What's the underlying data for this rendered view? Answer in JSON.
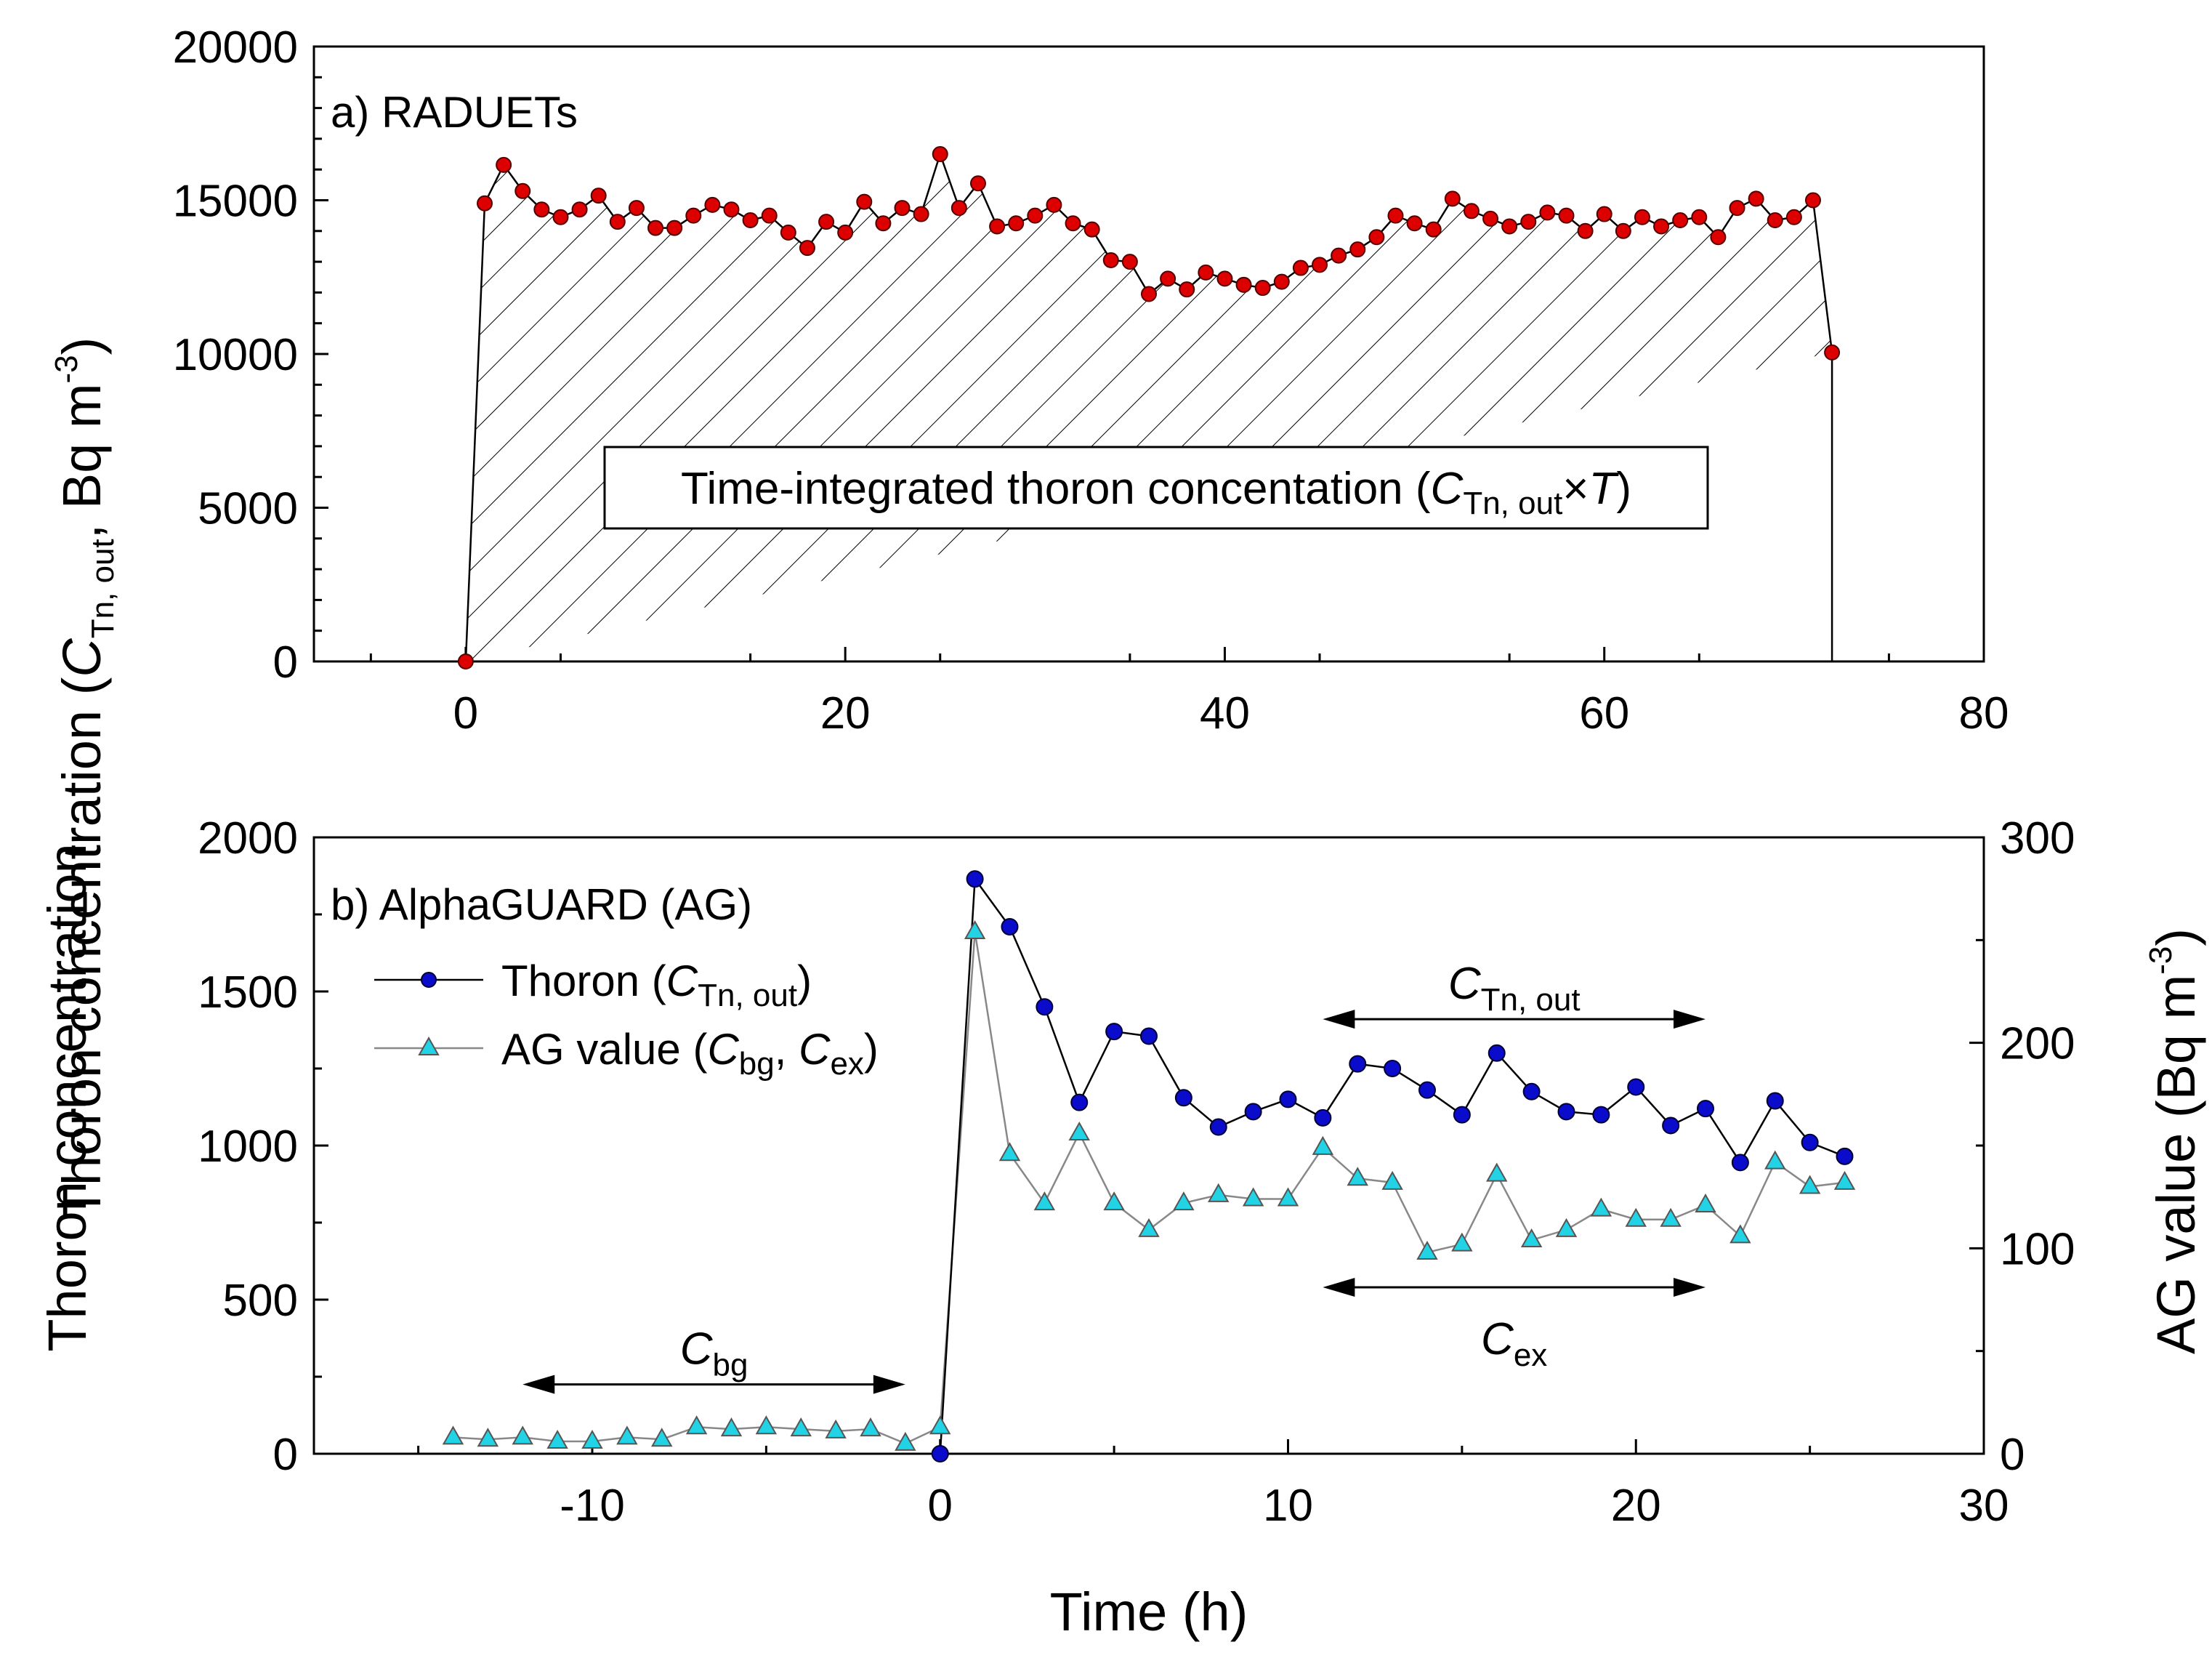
{
  "chart_data": [
    {
      "type": "line",
      "panel_label": "a) RADUETs",
      "xlim": [
        -8,
        80
      ],
      "xticks": [
        0,
        20,
        40,
        60,
        80
      ],
      "ylim": [
        0,
        20000
      ],
      "yticks": [
        0,
        5000,
        10000,
        15000,
        20000
      ],
      "ylabel": {
        "main": "Thoron concentration (",
        "sym": "C",
        "sub": "Tn, out",
        "units": ", Bq m",
        "exp": "-3",
        "close": ")"
      },
      "area_label": {
        "text": "Time-integrated thoron concentation (",
        "sym": "C",
        "sub": "Tn, out",
        "times": "×",
        "T": "T",
        "close": ")"
      },
      "series": [
        {
          "name": "RADUETs",
          "color": "#dd0000",
          "fill": "hatched",
          "x": [
            0,
            1,
            2,
            3,
            4,
            5,
            6,
            7,
            8,
            9,
            10,
            11,
            12,
            13,
            14,
            15,
            16,
            17,
            18,
            19,
            20,
            21,
            22,
            23,
            24,
            25,
            26,
            27,
            28,
            29,
            30,
            31,
            32,
            33,
            34,
            35,
            36,
            37,
            38,
            39,
            40,
            41,
            42,
            43,
            44,
            45,
            46,
            47,
            48,
            49,
            50,
            51,
            52,
            53,
            54,
            55,
            56,
            57,
            58,
            59,
            60,
            61,
            62,
            63,
            64,
            65,
            66,
            67,
            68,
            69,
            70,
            71,
            72
          ],
          "y": [
            0,
            14900,
            16150,
            15300,
            14700,
            14450,
            14700,
            15150,
            14300,
            14750,
            14100,
            14100,
            14500,
            14850,
            14700,
            14350,
            14500,
            13950,
            13450,
            14300,
            13950,
            14950,
            14250,
            14750,
            14550,
            16500,
            14750,
            15550,
            14150,
            14250,
            14500,
            14850,
            14250,
            14050,
            13050,
            13000,
            11950,
            12450,
            12100,
            12650,
            12450,
            12250,
            12150,
            12350,
            12800,
            12900,
            13200,
            13400,
            13800,
            14500,
            14250,
            14050,
            15050,
            14650,
            14400,
            14150,
            14300,
            14600,
            14500,
            14000,
            14550,
            14000,
            14450,
            14150,
            14350,
            14450,
            13800,
            14750,
            15050,
            14350,
            14450,
            15000,
            10050
          ]
        }
      ]
    },
    {
      "type": "line",
      "panel_label": "b) AlphaGUARD (AG)",
      "xlim": [
        -18,
        30
      ],
      "xticks": [
        -10,
        0,
        10,
        20,
        30
      ],
      "xlabel": "Time (h)",
      "ylim": [
        0,
        2000
      ],
      "yticks": [
        0,
        500,
        1000,
        1500,
        2000
      ],
      "ylabel": "Thoron concentration",
      "y2lim": [
        0,
        300
      ],
      "y2ticks": [
        0,
        100,
        200,
        300
      ],
      "y2label": {
        "main": "AG value (Bq m",
        "exp": "-3",
        "close": ")"
      },
      "legend": [
        {
          "prefix": "Thoron (",
          "sym": "C",
          "sub": "Tn, out",
          "suffix": ")"
        },
        {
          "prefix": "AG value (",
          "sym": "C",
          "sub": "bg",
          "mid": ", ",
          "sym2": "C",
          "sub2": "ex",
          "suffix": ")"
        }
      ],
      "annotations": [
        {
          "sym": "C",
          "sub": "bg",
          "x_from": -12,
          "x_to": -1,
          "y": 225
        },
        {
          "sym": "C",
          "sub": "Tn, out",
          "x_from": 11,
          "x_to": 22,
          "y": 1410
        },
        {
          "sym": "C",
          "sub": "ex",
          "x_from": 11,
          "x_to": 22,
          "y": 540
        }
      ],
      "series": [
        {
          "name": "Thoron",
          "axis": "left",
          "color": "#0b0bcc",
          "marker": "circle",
          "x": [
            0,
            1,
            2,
            3,
            4,
            5,
            6,
            7,
            8,
            9,
            10,
            11,
            12,
            13,
            14,
            15,
            16,
            17,
            18,
            19,
            20,
            21,
            22,
            23,
            24,
            25,
            26
          ],
          "y": [
            0,
            1865,
            1710,
            1450,
            1140,
            1370,
            1355,
            1155,
            1060,
            1110,
            1150,
            1090,
            1265,
            1250,
            1180,
            1100,
            1300,
            1175,
            1110,
            1100,
            1190,
            1065,
            1120,
            945,
            1145,
            1010,
            965
          ]
        },
        {
          "name": "AG value",
          "axis": "right",
          "color": "#22d3e6",
          "marker": "triangle",
          "x": [
            -14,
            -13,
            -12,
            -11,
            -10,
            -9,
            -8,
            -7,
            -6,
            -5,
            -4,
            -3,
            -2,
            -1,
            0,
            1,
            2,
            3,
            4,
            5,
            6,
            7,
            8,
            9,
            10,
            11,
            12,
            13,
            14,
            15,
            16,
            17,
            18,
            19,
            20,
            21,
            22,
            23,
            24,
            25,
            26
          ],
          "y": [
            8,
            7,
            8,
            6,
            6,
            8,
            7,
            13,
            12,
            13,
            12,
            11,
            12,
            5,
            13,
            254,
            146,
            122,
            156,
            122,
            109,
            122,
            126,
            124,
            124,
            149,
            134,
            132,
            98,
            102,
            136,
            104,
            109,
            119,
            114,
            114,
            121,
            106,
            142,
            130,
            132
          ]
        }
      ]
    }
  ]
}
